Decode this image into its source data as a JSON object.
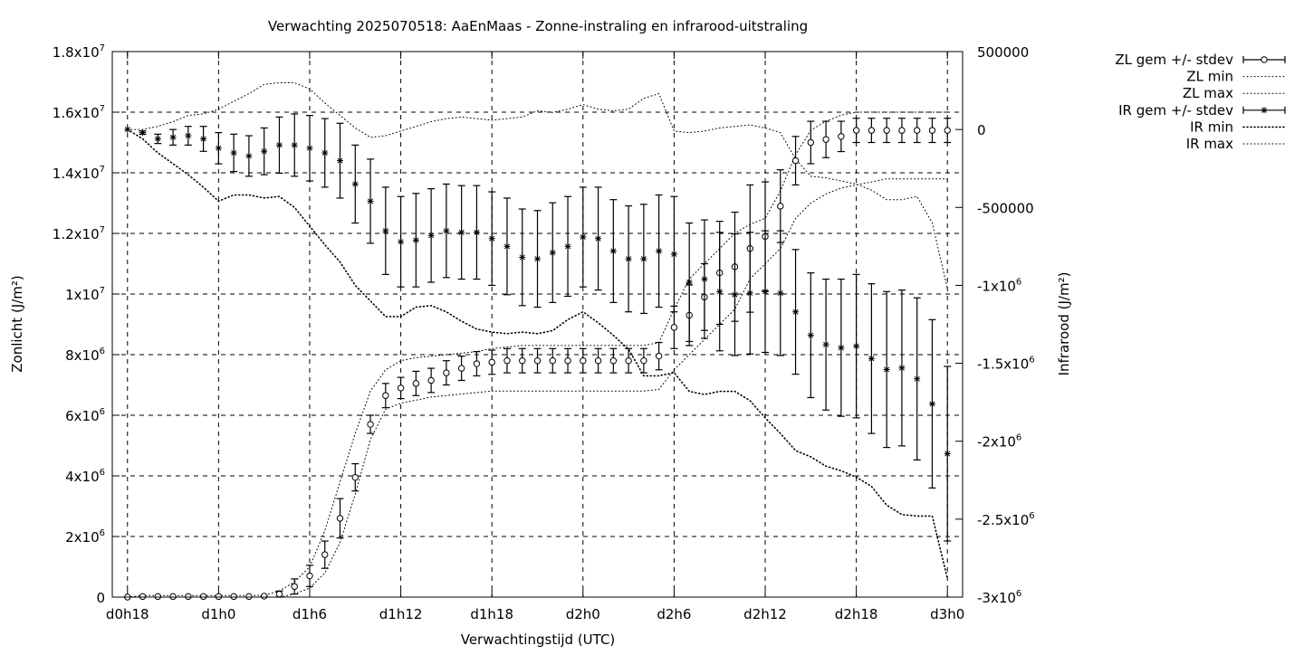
{
  "chart_data": {
    "type": "line",
    "title": "Verwachting 2025070518: AaEnMaas - Zonne-instraling en infrarood-uitstraling",
    "xlabel": "Verwachtingstijd (UTC)",
    "ylabel": "Zonlicht (J/m²)",
    "y2label": "Infrarood (J/m²)",
    "x_range_hours": [
      -1,
      55
    ],
    "x_ticks": [
      {
        "h": 0,
        "label": "d0h18"
      },
      {
        "h": 6,
        "label": "d1h0"
      },
      {
        "h": 12,
        "label": "d1h6"
      },
      {
        "h": 18,
        "label": "d1h12"
      },
      {
        "h": 24,
        "label": "d1h18"
      },
      {
        "h": 30,
        "label": "d2h0"
      },
      {
        "h": 36,
        "label": "d2h6"
      },
      {
        "h": 42,
        "label": "d2h12"
      },
      {
        "h": 48,
        "label": "d2h18"
      },
      {
        "h": 54,
        "label": "d3h0"
      }
    ],
    "y1_range": [
      0,
      18000000
    ],
    "y1_ticks": [
      {
        "v": 0,
        "label": "0"
      },
      {
        "v": 2000000,
        "label": "2x10^6"
      },
      {
        "v": 4000000,
        "label": "4x10^6"
      },
      {
        "v": 6000000,
        "label": "6x10^6"
      },
      {
        "v": 8000000,
        "label": "8x10^6"
      },
      {
        "v": 10000000,
        "label": "1x10^7"
      },
      {
        "v": 12000000,
        "label": "1.2x10^7"
      },
      {
        "v": 14000000,
        "label": "1.4x10^7"
      },
      {
        "v": 16000000,
        "label": "1.6x10^7"
      },
      {
        "v": 18000000,
        "label": "1.8x10^7"
      }
    ],
    "y2_range": [
      -3000000,
      500000
    ],
    "y2_ticks": [
      {
        "v": 500000,
        "label": "500000"
      },
      {
        "v": 0,
        "label": "0"
      },
      {
        "v": -500000,
        "label": "-500000"
      },
      {
        "v": -1000000,
        "label": "-1x10^6"
      },
      {
        "v": -1500000,
        "label": "-1.5x10^6"
      },
      {
        "v": -2000000,
        "label": "-2x10^6"
      },
      {
        "v": -2500000,
        "label": "-2.5x10^6"
      },
      {
        "v": -3000000,
        "label": "-3x10^6"
      }
    ],
    "grid": true,
    "legend_placement": "outside-right",
    "series": [
      {
        "name": "ZL gem +/- stdev",
        "axis": "y1",
        "style": "errorbar-circle",
        "x": [
          0,
          1,
          2,
          3,
          4,
          5,
          6,
          7,
          8,
          9,
          10,
          11,
          12,
          13,
          14,
          15,
          16,
          17,
          18,
          19,
          20,
          21,
          22,
          23,
          24,
          25,
          26,
          27,
          28,
          29,
          30,
          31,
          32,
          33,
          34,
          35,
          36,
          37,
          38,
          39,
          40,
          41,
          42,
          43,
          44,
          45,
          46,
          47,
          48,
          49,
          50,
          51,
          52,
          53,
          54
        ],
        "mean": [
          0,
          20000,
          20000,
          20000,
          20000,
          20000,
          20000,
          20000,
          20000,
          30000,
          100000,
          350000,
          700000,
          1400000,
          2600000,
          3950000,
          5700000,
          6650000,
          6900000,
          7050000,
          7150000,
          7400000,
          7550000,
          7700000,
          7750000,
          7800000,
          7800000,
          7800000,
          7800000,
          7800000,
          7800000,
          7800000,
          7800000,
          7800000,
          7800000,
          7950000,
          8900000,
          9300000,
          9900000,
          10700000,
          10900000,
          11500000,
          11900000,
          12900000,
          14400000,
          15000000,
          15100000,
          15200000,
          15400000,
          15400000,
          15400000,
          15400000,
          15400000,
          15400000,
          15400000
        ],
        "stdev": [
          0,
          10000,
          10000,
          10000,
          10000,
          10000,
          10000,
          10000,
          10000,
          20000,
          100000,
          250000,
          350000,
          450000,
          650000,
          450000,
          300000,
          400000,
          350000,
          400000,
          400000,
          400000,
          400000,
          400000,
          400000,
          400000,
          400000,
          400000,
          400000,
          400000,
          400000,
          400000,
          400000,
          400000,
          400000,
          450000,
          700000,
          1000000,
          1100000,
          1700000,
          1800000,
          2100000,
          1800000,
          1200000,
          800000,
          700000,
          600000,
          500000,
          400000,
          400000,
          400000,
          400000,
          400000,
          400000,
          400000
        ]
      },
      {
        "name": "ZL min",
        "axis": "y1",
        "style": "dotted",
        "x": [
          0,
          1,
          2,
          3,
          4,
          5,
          6,
          7,
          8,
          9,
          10,
          11,
          12,
          13,
          14,
          15,
          16,
          17,
          18,
          19,
          20,
          21,
          22,
          23,
          24,
          25,
          26,
          27,
          28,
          29,
          30,
          31,
          32,
          33,
          34,
          35,
          36,
          37,
          38,
          39,
          40,
          41,
          42,
          43,
          44,
          45,
          46,
          47,
          48,
          49,
          50,
          51,
          52,
          53,
          54
        ],
        "values": [
          0,
          0,
          0,
          0,
          0,
          0,
          0,
          0,
          0,
          0,
          0,
          100000,
          300000,
          800000,
          1800000,
          3400000,
          5200000,
          6200000,
          6400000,
          6500000,
          6600000,
          6650000,
          6700000,
          6750000,
          6800000,
          6800000,
          6800000,
          6800000,
          6800000,
          6800000,
          6800000,
          6800000,
          6800000,
          6800000,
          6800000,
          6850000,
          7500000,
          8000000,
          8500000,
          9000000,
          9500000,
          10500000,
          11000000,
          11500000,
          12500000,
          13000000,
          13300000,
          13500000,
          13600000,
          13700000,
          13800000,
          13800000,
          13800000,
          13800000,
          13800000
        ]
      },
      {
        "name": "ZL max",
        "axis": "y1",
        "style": "dotted",
        "x": [
          0,
          1,
          2,
          3,
          4,
          5,
          6,
          7,
          8,
          9,
          10,
          11,
          12,
          13,
          14,
          15,
          16,
          17,
          18,
          19,
          20,
          21,
          22,
          23,
          24,
          25,
          26,
          27,
          28,
          29,
          30,
          31,
          32,
          33,
          34,
          35,
          36,
          37,
          38,
          39,
          40,
          41,
          42,
          43,
          44,
          45,
          46,
          47,
          48,
          49,
          50,
          51,
          52,
          53,
          54
        ],
        "values": [
          0,
          50000,
          50000,
          50000,
          50000,
          50000,
          50000,
          50000,
          50000,
          60000,
          200000,
          500000,
          1000000,
          2200000,
          3800000,
          5400000,
          6800000,
          7500000,
          7800000,
          7900000,
          7950000,
          8000000,
          8050000,
          8100000,
          8200000,
          8250000,
          8300000,
          8300000,
          8300000,
          8300000,
          8300000,
          8300000,
          8300000,
          8300000,
          8300000,
          8400000,
          9500000,
          10500000,
          11000000,
          11500000,
          12000000,
          12300000,
          12500000,
          13400000,
          14600000,
          15400000,
          15700000,
          15900000,
          16000000,
          16000000,
          16000000,
          16000000,
          16000000,
          16000000,
          16000000
        ]
      },
      {
        "name": "IR gem +/- stdev",
        "axis": "y2",
        "style": "errorbar-star",
        "x": [
          0,
          1,
          2,
          3,
          4,
          5,
          6,
          7,
          8,
          9,
          10,
          11,
          12,
          13,
          14,
          15,
          16,
          17,
          18,
          19,
          20,
          21,
          22,
          23,
          24,
          25,
          26,
          27,
          28,
          29,
          30,
          31,
          32,
          33,
          34,
          35,
          36,
          37,
          38,
          39,
          40,
          41,
          42,
          43,
          44,
          45,
          46,
          47,
          48,
          49,
          50,
          51,
          52,
          53,
          54
        ],
        "mean": [
          0,
          -20000,
          -60000,
          -50000,
          -40000,
          -60000,
          -120000,
          -150000,
          -170000,
          -140000,
          -100000,
          -100000,
          -120000,
          -150000,
          -200000,
          -350000,
          -460000,
          -650000,
          -720000,
          -710000,
          -680000,
          -650000,
          -660000,
          -660000,
          -700000,
          -750000,
          -820000,
          -830000,
          -790000,
          -750000,
          -690000,
          -700000,
          -780000,
          -830000,
          -830000,
          -780000,
          -800000,
          -980000,
          -960000,
          -1040000,
          -1060000,
          -1050000,
          -1040000,
          -1050000,
          -1170000,
          -1320000,
          -1380000,
          -1400000,
          -1390000,
          -1470000,
          -1540000,
          -1530000,
          -1600000,
          -1760000,
          -2080000
        ],
        "stdev": [
          0,
          10000,
          30000,
          50000,
          60000,
          80000,
          100000,
          120000,
          130000,
          150000,
          180000,
          200000,
          210000,
          220000,
          240000,
          250000,
          270000,
          280000,
          290000,
          300000,
          300000,
          300000,
          300000,
          300000,
          300000,
          310000,
          310000,
          310000,
          320000,
          320000,
          320000,
          330000,
          330000,
          340000,
          350000,
          360000,
          370000,
          380000,
          380000,
          380000,
          390000,
          390000,
          390000,
          400000,
          400000,
          400000,
          420000,
          440000,
          460000,
          480000,
          500000,
          500000,
          520000,
          540000,
          560000
        ]
      },
      {
        "name": "IR min",
        "axis": "y2",
        "style": "dotted",
        "x": [
          0,
          1,
          2,
          3,
          4,
          5,
          6,
          7,
          8,
          9,
          10,
          11,
          12,
          13,
          14,
          15,
          16,
          17,
          18,
          19,
          20,
          21,
          22,
          23,
          24,
          25,
          26,
          27,
          28,
          29,
          30,
          31,
          32,
          33,
          34,
          35,
          36,
          37,
          38,
          39,
          40,
          41,
          42,
          43,
          44,
          45,
          46,
          47,
          48,
          49,
          50,
          51,
          52,
          53,
          54
        ],
        "values": [
          0,
          -60000,
          -150000,
          -220000,
          -290000,
          -370000,
          -460000,
          -420000,
          -420000,
          -440000,
          -430000,
          -500000,
          -620000,
          -740000,
          -850000,
          -1000000,
          -1100000,
          -1200000,
          -1200000,
          -1140000,
          -1130000,
          -1170000,
          -1230000,
          -1280000,
          -1300000,
          -1310000,
          -1300000,
          -1310000,
          -1290000,
          -1220000,
          -1170000,
          -1240000,
          -1320000,
          -1410000,
          -1580000,
          -1580000,
          -1560000,
          -1680000,
          -1700000,
          -1680000,
          -1680000,
          -1740000,
          -1850000,
          -1950000,
          -2060000,
          -2100000,
          -2160000,
          -2190000,
          -2230000,
          -2290000,
          -2410000,
          -2470000,
          -2480000,
          -2480000,
          -2880000
        ]
      },
      {
        "name": "IR max",
        "axis": "y2",
        "style": "dotted",
        "x": [
          0,
          1,
          2,
          3,
          4,
          5,
          6,
          7,
          8,
          9,
          10,
          11,
          12,
          13,
          14,
          15,
          16,
          17,
          18,
          19,
          20,
          21,
          22,
          23,
          24,
          25,
          26,
          27,
          28,
          29,
          30,
          31,
          32,
          33,
          34,
          35,
          36,
          37,
          38,
          39,
          40,
          41,
          42,
          43,
          44,
          45,
          46,
          47,
          48,
          49,
          50,
          51,
          52,
          53,
          54
        ],
        "values": [
          0,
          0,
          20000,
          50000,
          90000,
          100000,
          130000,
          180000,
          230000,
          290000,
          300000,
          300000,
          260000,
          170000,
          90000,
          10000,
          -50000,
          -40000,
          -10000,
          20000,
          50000,
          70000,
          80000,
          70000,
          60000,
          70000,
          80000,
          120000,
          110000,
          130000,
          160000,
          130000,
          120000,
          130000,
          200000,
          230000,
          -10000,
          -20000,
          -10000,
          10000,
          20000,
          30000,
          10000,
          -20000,
          -190000,
          -300000,
          -310000,
          -330000,
          -350000,
          -390000,
          -450000,
          -450000,
          -430000,
          -600000,
          -1020000
        ]
      }
    ]
  },
  "legend": [
    {
      "label": "ZL gem +/- stdev",
      "sym": "circle-err"
    },
    {
      "label": "ZL min",
      "sym": "dot"
    },
    {
      "label": "ZL max",
      "sym": "dot"
    },
    {
      "label": "IR gem +/- stdev",
      "sym": "star-err"
    },
    {
      "label": "IR min",
      "sym": "dot-bold"
    },
    {
      "label": "IR max",
      "sym": "dot"
    }
  ]
}
